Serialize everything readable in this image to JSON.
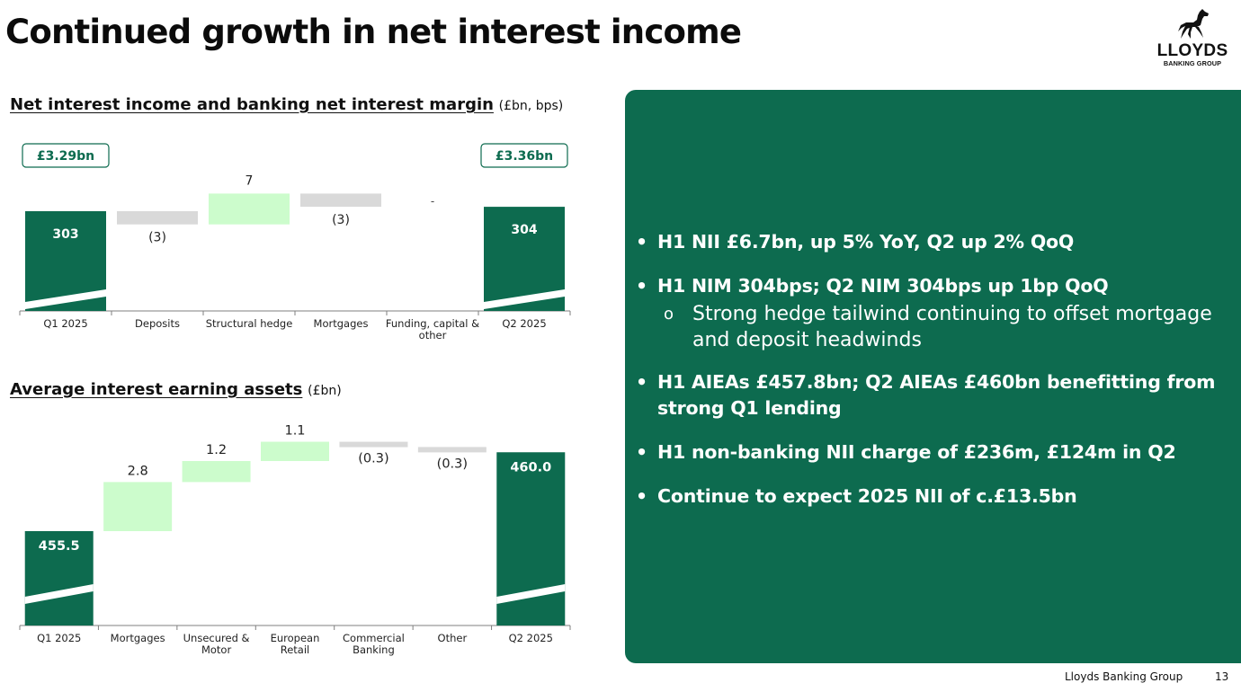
{
  "title": "Continued growth in net interest income",
  "logo": {
    "word": "LLOYDS",
    "sub": "BANKING GROUP",
    "emblem": "black-horse-icon"
  },
  "colors": {
    "dark_green": "#0d6b4f",
    "light_green": "#ccfccc",
    "grey": "#d9d9d9",
    "axis": "#7f7f7f",
    "white": "#ffffff"
  },
  "section1": {
    "heading": "Net interest income and banking net interest margin",
    "unit": "(£bn, bps)"
  },
  "section2": {
    "heading": "Average interest earning assets",
    "unit": "(£bn)"
  },
  "chart_data": [
    {
      "type": "bar",
      "subtype": "waterfall",
      "title": "Net interest income and banking net interest margin",
      "unit": "(£bn, bps)",
      "categories": [
        "Q1 2025",
        "Deposits",
        "Structural hedge",
        "Mortgages",
        "Funding, capital & other",
        "Q2 2025"
      ],
      "values": [
        303,
        -3,
        7,
        -3,
        0,
        304
      ],
      "value_labels": [
        "303",
        "(3)",
        "7",
        "(3)",
        "-",
        "304"
      ],
      "bar_kinds": [
        "total",
        "decrease",
        "increase",
        "decrease",
        "none",
        "total"
      ],
      "callouts": [
        "£3.29bn",
        "",
        "",
        "",
        "",
        "£3.36bn"
      ],
      "axis_break": true,
      "grid": false,
      "legend": "none"
    },
    {
      "type": "bar",
      "subtype": "waterfall",
      "title": "Average interest earning assets",
      "unit": "(£bn)",
      "categories": [
        "Q1 2025",
        "Mortgages",
        "Unsecured & Motor",
        "European Retail",
        "Commercial Banking",
        "Other",
        "Q2 2025"
      ],
      "values": [
        455.5,
        2.8,
        1.2,
        1.1,
        -0.3,
        -0.3,
        460.0
      ],
      "value_labels": [
        "455.5",
        "2.8",
        "1.2",
        "1.1",
        "(0.3)",
        "(0.3)",
        "460.0"
      ],
      "bar_kinds": [
        "total",
        "increase",
        "increase",
        "increase",
        "decrease",
        "decrease",
        "total"
      ],
      "axis_break": true,
      "grid": false,
      "legend": "none"
    }
  ],
  "panel": {
    "bullet_symbol": "•",
    "sub_bullet_symbol": "o",
    "bullets": [
      "H1 NII £6.7bn, up 5% YoY, Q2 up 2% QoQ",
      "H1 NIM 304bps; Q2 NIM 304bps up 1bp QoQ",
      "H1 AIEAs £457.8bn; Q2 AIEAs £460bn benefitting from strong Q1 lending",
      "H1 non-banking NII charge of £236m, £124m in Q2",
      "Continue to expect 2025 NII of c.£13.5bn"
    ],
    "sub_bullet": "Strong hedge tailwind continuing to offset mortgage and deposit headwinds"
  },
  "footer": {
    "org": "Lloyds Banking Group",
    "page": "13"
  }
}
